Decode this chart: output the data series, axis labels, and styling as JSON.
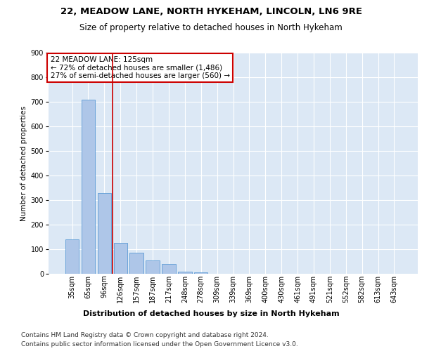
{
  "title1": "22, MEADOW LANE, NORTH HYKEHAM, LINCOLN, LN6 9RE",
  "title2": "Size of property relative to detached houses in North Hykeham",
  "xlabel": "Distribution of detached houses by size in North Hykeham",
  "ylabel": "Number of detached properties",
  "categories": [
    "35sqm",
    "65sqm",
    "96sqm",
    "126sqm",
    "157sqm",
    "187sqm",
    "217sqm",
    "248sqm",
    "278sqm",
    "309sqm",
    "339sqm",
    "369sqm",
    "400sqm",
    "430sqm",
    "461sqm",
    "491sqm",
    "521sqm",
    "552sqm",
    "582sqm",
    "613sqm",
    "643sqm"
  ],
  "values": [
    140,
    710,
    330,
    125,
    85,
    55,
    40,
    10,
    5,
    0,
    0,
    0,
    0,
    0,
    0,
    0,
    0,
    0,
    0,
    0,
    0
  ],
  "bar_color": "#aec6e8",
  "bar_edge_color": "#5b9bd5",
  "vline_x": 2.5,
  "vline_color": "#cc0000",
  "annotation_line1": "22 MEADOW LANE: 125sqm",
  "annotation_line2": "← 72% of detached houses are smaller (1,486)",
  "annotation_line3": "27% of semi-detached houses are larger (560) →",
  "annotation_box_color": "#ffffff",
  "annotation_box_edge_color": "#cc0000",
  "ylim": [
    0,
    900
  ],
  "yticks": [
    0,
    100,
    200,
    300,
    400,
    500,
    600,
    700,
    800,
    900
  ],
  "bg_color": "#dce8f5",
  "footer1": "Contains HM Land Registry data © Crown copyright and database right 2024.",
  "footer2": "Contains public sector information licensed under the Open Government Licence v3.0.",
  "title1_fontsize": 9.5,
  "title2_fontsize": 8.5,
  "annotation_fontsize": 7.5,
  "ylabel_fontsize": 7.5,
  "xlabel_fontsize": 8,
  "footer_fontsize": 6.5,
  "tick_fontsize": 7
}
